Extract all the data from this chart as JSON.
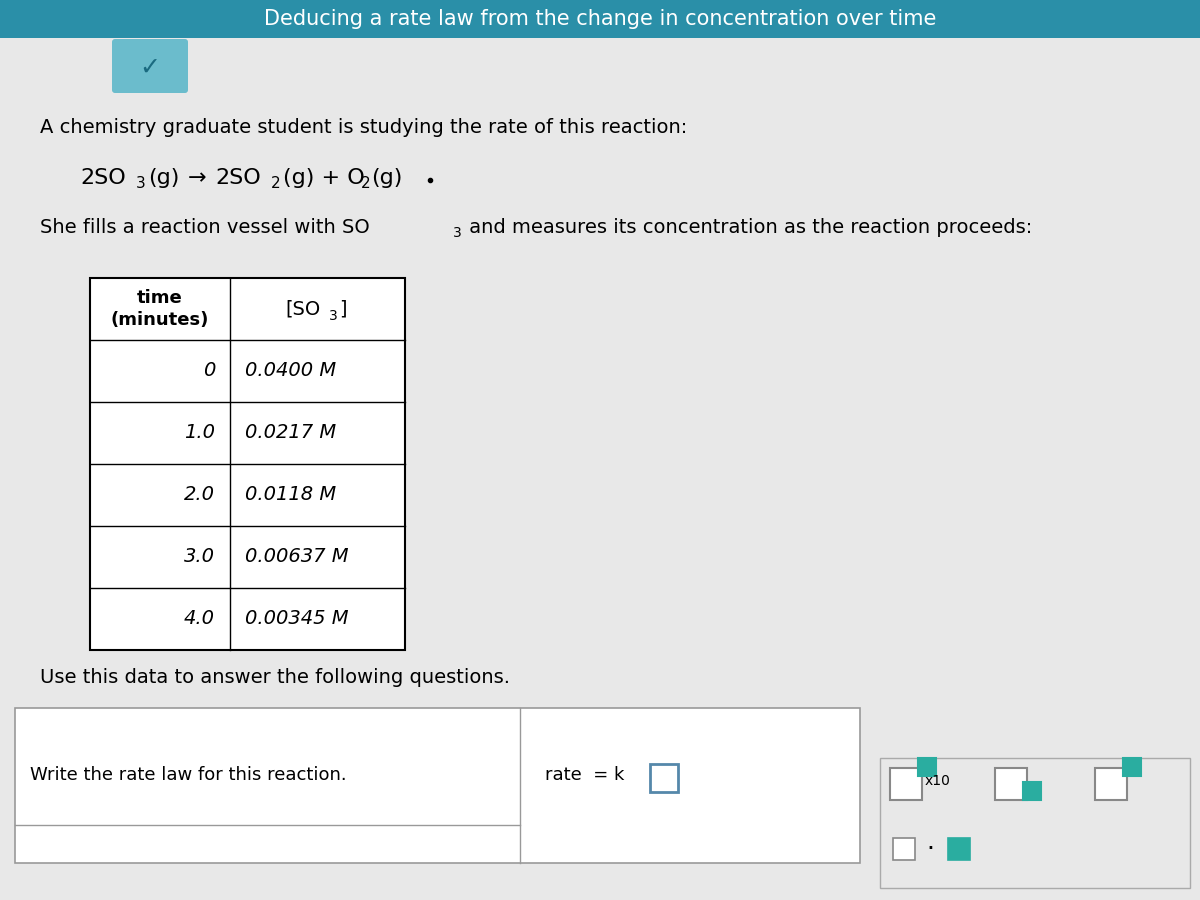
{
  "title": "Deducing a rate law from the change in concentration over time",
  "title_bg": "#2a8fa8",
  "bg_color": "#e8e8e8",
  "content_bg": "#e8e8e8",
  "intro_text": "A chemistry graduate student is studying the rate of this reaction:",
  "vessel_text": "She fills a reaction vessel with SO",
  "vessel_text2": " and measures its concentration as the reaction proceeds:",
  "table_header_time": "time\n(minutes)",
  "table_data": [
    [
      "0",
      "0.0400 M"
    ],
    [
      "1.0",
      "0.0217 M"
    ],
    [
      "2.0",
      "0.0118 M"
    ],
    [
      "3.0",
      "0.00637 M"
    ],
    [
      "4.0",
      "0.00345 M"
    ]
  ],
  "use_text": "Use this data to answer the following questions.",
  "question_text": "Write the rate law for this reaction.",
  "rate_text": "rate  = k",
  "chevron_bg": "#6bbccc",
  "chevron_color": "#1a6a80",
  "teal_color": "#2aada0",
  "box_outline": "#5588aa"
}
